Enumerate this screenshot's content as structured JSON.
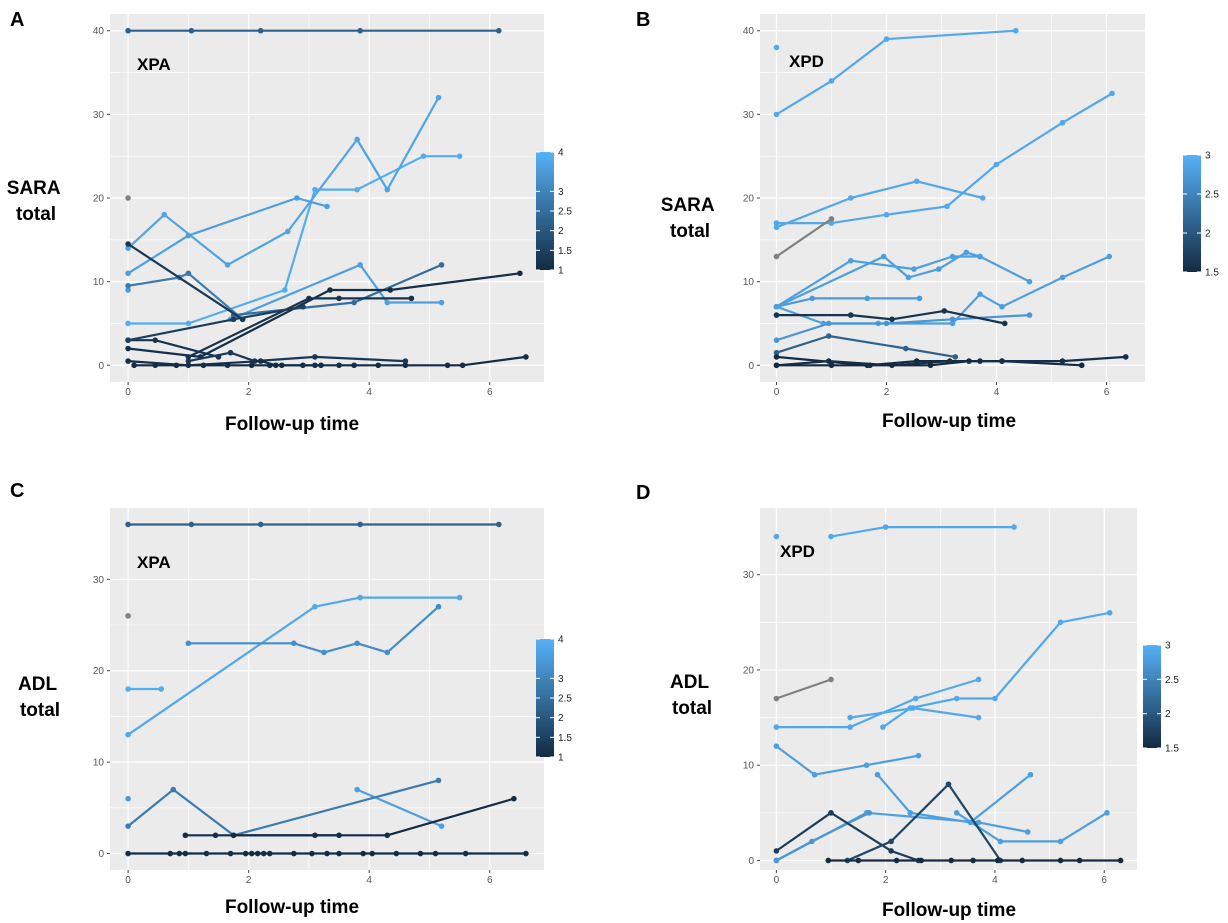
{
  "colors": {
    "panel_bg": "#ebebeb",
    "grid": "#ffffff",
    "na": "#808080",
    "low": "#132b43",
    "high": "#56b1f7"
  },
  "chart_data": [
    {
      "id": "A",
      "type": "line",
      "letter": "A",
      "annotation": "XPA",
      "ylabel": [
        "SARA",
        "total"
      ],
      "xlabel": "Follow-up time",
      "xlim": [
        -0.3,
        6.9
      ],
      "ylim": [
        -2,
        42
      ],
      "xticks": [
        0,
        2,
        4,
        6
      ],
      "yticks": [
        0,
        10,
        20,
        30,
        40
      ],
      "colorbar": {
        "min": 1,
        "max": 4,
        "ticks": [
          1,
          1.5,
          2,
          2.5,
          3,
          4
        ]
      },
      "series": [
        {
          "c": 2.2,
          "x": [
            0,
            1.05,
            2.2,
            3.85,
            6.15
          ],
          "y": [
            40,
            40,
            40,
            40,
            40
          ]
        },
        {
          "c": null,
          "x": [
            0
          ],
          "y": [
            20
          ]
        },
        {
          "c": 3.9,
          "x": [
            0,
            1,
            2.6,
            3.1,
            3.8,
            4.9,
            5.5
          ],
          "y": [
            5,
            5,
            9,
            21,
            21,
            25,
            25
          ]
        },
        {
          "c": 3.7,
          "x": [
            0,
            0.6,
            1.65,
            2.65,
            3.8,
            4.3,
            5.15
          ],
          "y": [
            14,
            18,
            12,
            16,
            27,
            21,
            32
          ]
        },
        {
          "c": 3.6,
          "x": [
            0,
            1,
            2.8,
            3.3
          ],
          "y": [
            11,
            15.5,
            20,
            19
          ]
        },
        {
          "c": 3.5,
          "x": [
            0
          ],
          "y": [
            9
          ]
        },
        {
          "c": 3.6,
          "x": [
            1.7,
            3.85,
            4.3,
            5.2
          ],
          "y": [
            5.5,
            12,
            7.5,
            7.5
          ]
        },
        {
          "c": 2.8,
          "x": [
            0,
            0.85,
            1,
            1.9
          ],
          "y": [
            9.5,
            10.5,
            11,
            5.5
          ]
        },
        {
          "c": 2.5,
          "x": [
            1.75,
            3.75,
            5.2
          ],
          "y": [
            6,
            7.5,
            12
          ]
        },
        {
          "c": 1.3,
          "x": [
            0,
            1.9
          ],
          "y": [
            14.5,
            5.5
          ]
        },
        {
          "c": 1.2,
          "x": [
            0,
            0.45,
            1.5
          ],
          "y": [
            3,
            3,
            1
          ]
        },
        {
          "c": 1.1,
          "x": [
            0,
            1.2,
            3.35,
            4.35,
            6.5
          ],
          "y": [
            2,
            1,
            9,
            9,
            11
          ]
        },
        {
          "c": 1.2,
          "x": [
            1,
            3,
            3.5,
            4.7
          ],
          "y": [
            1,
            8,
            8,
            8
          ]
        },
        {
          "c": 1.4,
          "x": [
            0,
            1.75,
            2.9
          ],
          "y": [
            3,
            5.5,
            7
          ]
        },
        {
          "c": 1.3,
          "x": [
            1,
            1.7,
            2.1,
            3.1,
            4.6
          ],
          "y": [
            0.5,
            1.5,
            0.5,
            1,
            0.5
          ]
        },
        {
          "c": 1.1,
          "x": [
            0,
            1,
            2.2,
            2.45,
            3.1
          ],
          "y": [
            0.5,
            0,
            0.5,
            0,
            0
          ]
        },
        {
          "c": 1.05,
          "x": [
            0.1,
            0.45,
            0.8,
            1.25,
            1.65,
            2.05,
            2.35,
            2.55,
            2.9,
            3.2,
            3.5,
            3.75,
            4.15,
            4.6,
            5.3,
            5.55,
            6.6
          ],
          "y": [
            0,
            0,
            0,
            0,
            0,
            0,
            0,
            0,
            0,
            0,
            0,
            0,
            0,
            0,
            0,
            0,
            1
          ]
        }
      ]
    },
    {
      "id": "B",
      "type": "line",
      "letter": "B",
      "annotation": "XPD",
      "ylabel": [
        "SARA",
        "total"
      ],
      "xlabel": "Follow-up time",
      "xlim": [
        -0.3,
        6.7
      ],
      "ylim": [
        -2,
        42
      ],
      "xticks": [
        0,
        2,
        4,
        6
      ],
      "yticks": [
        0,
        10,
        20,
        30,
        40
      ],
      "colorbar": {
        "min": 1.5,
        "max": 3,
        "ticks": [
          1.5,
          2,
          2.5,
          3
        ]
      },
      "series": [
        {
          "c": 2.9,
          "x": [
            0
          ],
          "y": [
            38
          ]
        },
        {
          "c": 2.9,
          "x": [
            0,
            1,
            2,
            4.35
          ],
          "y": [
            30,
            34,
            39,
            40
          ]
        },
        {
          "c": 2.9,
          "x": [
            0,
            1.35,
            2.55,
            3.75
          ],
          "y": [
            16.5,
            20,
            22,
            20
          ]
        },
        {
          "c": 2.9,
          "x": [
            0,
            1,
            2,
            3.1,
            4,
            5.2,
            6.1
          ],
          "y": [
            17,
            17,
            18,
            19,
            24,
            29,
            32.5
          ]
        },
        {
          "c": null,
          "x": [
            0,
            1
          ],
          "y": [
            13,
            17.5
          ]
        },
        {
          "c": 2.8,
          "x": [
            0,
            1.35,
            2.5,
            3.2,
            3.7,
            4.6
          ],
          "y": [
            7,
            12.5,
            11.5,
            13,
            13,
            10
          ]
        },
        {
          "c": 2.8,
          "x": [
            0,
            1.95,
            2.4,
            2.95,
            3.45,
            3.7
          ],
          "y": [
            7,
            13,
            10.5,
            11.5,
            13.5,
            13
          ]
        },
        {
          "c": 2.75,
          "x": [
            0,
            0.65,
            1.65,
            2.6
          ],
          "y": [
            7,
            8,
            8,
            8
          ]
        },
        {
          "c": 2.8,
          "x": [
            0,
            0.85,
            1.85,
            3.2,
            3.7,
            4.1,
            5.2,
            6.05
          ],
          "y": [
            7,
            5,
            5,
            5,
            8.5,
            7,
            10.5,
            13
          ]
        },
        {
          "c": 2.7,
          "x": [
            0,
            0.95,
            2,
            3.2,
            4.6
          ],
          "y": [
            3,
            5,
            5,
            5.5,
            6
          ]
        },
        {
          "c": 1.6,
          "x": [
            0,
            1.35,
            2.1,
            3.05,
            4.15
          ],
          "y": [
            6,
            6,
            5.5,
            6.5,
            5
          ]
        },
        {
          "c": 2.1,
          "x": [
            0,
            0.95,
            2.35,
            3.25
          ],
          "y": [
            1.5,
            3.5,
            2,
            1
          ]
        },
        {
          "c": 1.5,
          "x": [
            0,
            1.65,
            2.55,
            3.7,
            4.1,
            5.55
          ],
          "y": [
            1,
            0,
            0.5,
            0.5,
            0.5,
            0
          ]
        },
        {
          "c": 1.55,
          "x": [
            0,
            0.95,
            2.1,
            3.15,
            4.1,
            5.2,
            6.35
          ],
          "y": [
            0,
            0.5,
            0,
            0.5,
            0.5,
            0.5,
            1
          ]
        },
        {
          "c": 1.5,
          "x": [
            0,
            1,
            1.7,
            2.8,
            3.5
          ],
          "y": [
            0,
            0,
            0,
            0,
            0.5
          ]
        }
      ]
    },
    {
      "id": "C",
      "type": "line",
      "letter": "C",
      "annotation": "XPA",
      "ylabel": [
        "ADL",
        "total"
      ],
      "xlabel": "Follow-up time",
      "xlim": [
        -0.3,
        6.9
      ],
      "ylim": [
        -1.8,
        37.8
      ],
      "xticks": [
        0,
        2,
        4,
        6
      ],
      "yticks": [
        0,
        10,
        20,
        30
      ],
      "colorbar": {
        "min": 1,
        "max": 4,
        "ticks": [
          1,
          1.5,
          2,
          2.5,
          3,
          4
        ]
      },
      "series": [
        {
          "c": 2.2,
          "x": [
            0,
            1.05,
            2.2,
            3.85,
            6.15
          ],
          "y": [
            36,
            36,
            36,
            36,
            36
          ]
        },
        {
          "c": null,
          "x": [
            0
          ],
          "y": [
            26
          ]
        },
        {
          "c": 3.9,
          "x": [
            0,
            0.55
          ],
          "y": [
            18,
            18
          ]
        },
        {
          "c": 3.8,
          "x": [
            0,
            3.1,
            3.85,
            5.5
          ],
          "y": [
            13,
            27,
            28,
            28
          ]
        },
        {
          "c": 3.2,
          "x": [
            1,
            2.75,
            3.25,
            3.8,
            4.3,
            5.15
          ],
          "y": [
            23,
            23,
            22,
            23,
            22,
            27
          ]
        },
        {
          "c": 3.5,
          "x": [
            0
          ],
          "y": [
            6
          ]
        },
        {
          "c": 3.6,
          "x": [
            3.8,
            5.2
          ],
          "y": [
            7,
            3
          ]
        },
        {
          "c": 2.8,
          "x": [
            0,
            0.75,
            1.75,
            5.15
          ],
          "y": [
            3,
            7,
            2,
            8
          ]
        },
        {
          "c": 1.1,
          "x": [
            0.95,
            1.45,
            3.1,
            3.5
          ],
          "y": [
            2,
            2,
            2,
            2
          ]
        },
        {
          "c": 1.05,
          "x": [
            1.75,
            4.3,
            6.4
          ],
          "y": [
            2,
            2,
            6
          ]
        },
        {
          "c": 1.05,
          "x": [
            0,
            0.7,
            0.85,
            0.95,
            1.3,
            1.7,
            1.95,
            2.05,
            2.15,
            2.25,
            2.35,
            2.75,
            3.05,
            3.3,
            3.5,
            3.9,
            4.05,
            4.45,
            4.85,
            5.1,
            5.6,
            6.6
          ],
          "y": [
            0,
            0,
            0,
            0,
            0,
            0,
            0,
            0,
            0,
            0,
            0,
            0,
            0,
            0,
            0,
            0,
            0,
            0,
            0,
            0,
            0,
            0
          ]
        }
      ]
    },
    {
      "id": "D",
      "type": "line",
      "letter": "D",
      "annotation": "XPD",
      "ylabel": [
        "ADL",
        "total"
      ],
      "xlabel": "Follow-up time",
      "xlim": [
        -0.3,
        6.6
      ],
      "ylim": [
        -1,
        37
      ],
      "xticks": [
        0,
        2,
        4,
        6
      ],
      "yticks": [
        0,
        10,
        20,
        30
      ],
      "colorbar": {
        "min": 1.5,
        "max": 3,
        "ticks": [
          1.5,
          2,
          2.5,
          3
        ]
      },
      "series": [
        {
          "c": 2.9,
          "x": [
            0
          ],
          "y": [
            34
          ]
        },
        {
          "c": 2.9,
          "x": [
            1,
            2,
            4.35
          ],
          "y": [
            34,
            35,
            35
          ]
        },
        {
          "c": null,
          "x": [
            0,
            1
          ],
          "y": [
            17,
            19
          ]
        },
        {
          "c": 2.9,
          "x": [
            0,
            1.35,
            2.55,
            3.7
          ],
          "y": [
            14,
            14,
            17,
            19
          ]
        },
        {
          "c": 2.9,
          "x": [
            1.35,
            2.5,
            3.7
          ],
          "y": [
            15,
            16,
            15
          ]
        },
        {
          "c": 2.9,
          "x": [
            1.95,
            2.45,
            3.3,
            4,
            5.2,
            6.1
          ],
          "y": [
            14,
            16,
            17,
            17,
            25,
            26
          ]
        },
        {
          "c": 2.8,
          "x": [
            0,
            0.7,
            1.65,
            2.6
          ],
          "y": [
            12,
            9,
            10,
            11
          ]
        },
        {
          "c": 2.8,
          "x": [
            1.85,
            2.45,
            3.55,
            4.65
          ],
          "y": [
            9,
            5,
            4,
            9
          ]
        },
        {
          "c": 2.8,
          "x": [
            0,
            1.65,
            3.7,
            4.6
          ],
          "y": [
            0,
            5,
            4,
            3
          ]
        },
        {
          "c": 2.7,
          "x": [
            0,
            0.65,
            1.7
          ],
          "y": [
            0,
            2,
            5
          ]
        },
        {
          "c": 2.8,
          "x": [
            3.3,
            4.1,
            5.2,
            6.05
          ],
          "y": [
            5,
            2,
            2,
            5
          ]
        },
        {
          "c": 1.7,
          "x": [
            0,
            1,
            2.1,
            2.6
          ],
          "y": [
            1,
            5,
            1,
            0
          ]
        },
        {
          "c": 1.8,
          "x": [
            1.3,
            2.1,
            3.15,
            4.1
          ],
          "y": [
            0,
            2,
            8,
            0
          ]
        },
        {
          "c": 1.5,
          "x": [
            0.95,
            1.5,
            2.2,
            2.65,
            3.2,
            3.6,
            4.05,
            4.5,
            5.2,
            5.55,
            6.3
          ],
          "y": [
            0,
            0,
            0,
            0,
            0,
            0,
            0,
            0,
            0,
            0,
            0
          ]
        }
      ]
    }
  ]
}
